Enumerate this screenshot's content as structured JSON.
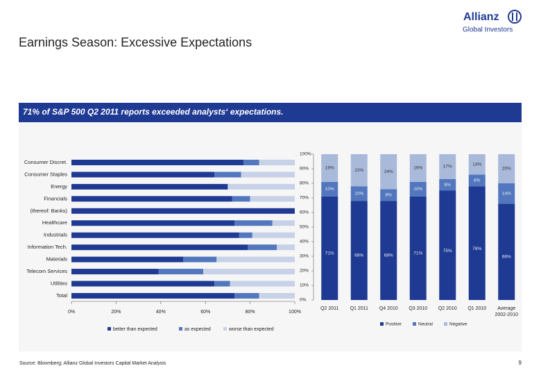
{
  "header": {
    "title": "Earnings Season: Excessive Expectations"
  },
  "logo": {
    "name": "Allianz",
    "subtitle": "Global Investors"
  },
  "banner": "71% of S&P 500 Q2 2011 reports exceeded analysts‘ expectations.",
  "chart_data": [
    {
      "type": "hbar-stacked",
      "categories": [
        "Consumer Discret.",
        "Consumer Staples",
        "Energy",
        "Financials",
        "(thereof: Banks)",
        "Healthcare",
        "Industrials",
        "Information Tech.",
        "Materials",
        "Telecom Services",
        "Utilities",
        "Total"
      ],
      "series": [
        {
          "name": "better than expected",
          "color": "#1f3a93",
          "values": [
            77,
            64,
            70,
            72,
            100,
            73,
            75,
            79,
            50,
            39,
            64,
            73
          ]
        },
        {
          "name": "as expected",
          "color": "#5277be",
          "values": [
            7,
            12,
            0,
            8,
            0,
            17,
            6,
            13,
            15,
            20,
            7,
            11
          ]
        },
        {
          "name": "worse than expected",
          "color": "#c7d1e7",
          "values": [
            16,
            24,
            30,
            20,
            0,
            10,
            19,
            8,
            35,
            41,
            29,
            16
          ]
        }
      ],
      "xlim": [
        0,
        100
      ],
      "xticks": [
        {
          "value": 0,
          "label": "0%"
        },
        {
          "value": 20,
          "label": "20%"
        },
        {
          "value": 40,
          "label": "40%"
        },
        {
          "value": 60,
          "label": "60%"
        },
        {
          "value": 80,
          "label": "80%"
        },
        {
          "value": 100,
          "label": "100%"
        }
      ]
    },
    {
      "type": "bar-stacked",
      "categories": [
        "Q2 2011",
        "Q1 2011",
        "Q4 2010",
        "Q3 2010",
        "Q2 2010",
        "Q1 2010",
        "Average 2002-2010"
      ],
      "series": [
        {
          "name": "Positive",
          "color": "#1f3a93",
          "values": [
            71,
            68,
            68,
            71,
            75,
            78,
            66
          ],
          "value_labels": [
            "71%",
            "68%",
            "68%",
            "71%",
            "75%",
            "78%",
            "66%"
          ]
        },
        {
          "name": "Neutral",
          "color": "#5277be",
          "values": [
            10,
            10,
            8,
            10,
            8,
            8,
            14
          ],
          "value_labels": [
            "10%",
            "10%",
            "8%",
            "10%",
            "8%",
            "8%",
            "14%"
          ]
        },
        {
          "name": "Negative",
          "color": "#a9b9da",
          "values": [
            19,
            22,
            24,
            19,
            17,
            14,
            20
          ],
          "value_labels": [
            "19%",
            "22%",
            "24%",
            "19%",
            "17%",
            "14%",
            "20%"
          ]
        }
      ],
      "ylim": [
        0,
        100
      ],
      "yticks": [
        {
          "value": 0,
          "label": "0%"
        },
        {
          "value": 10,
          "label": "10%"
        },
        {
          "value": 20,
          "label": "20%"
        },
        {
          "value": 30,
          "label": "30%"
        },
        {
          "value": 40,
          "label": "40%"
        },
        {
          "value": 50,
          "label": "50%"
        },
        {
          "value": 60,
          "label": "60%"
        },
        {
          "value": 70,
          "label": "70%"
        },
        {
          "value": 80,
          "label": "80%"
        },
        {
          "value": 90,
          "label": "90%"
        },
        {
          "value": 100,
          "label": "100%"
        }
      ]
    }
  ],
  "footer": {
    "source": "Source: Bloomberg; Allianz Global Investors Capital Market Analysis",
    "page": "9"
  }
}
